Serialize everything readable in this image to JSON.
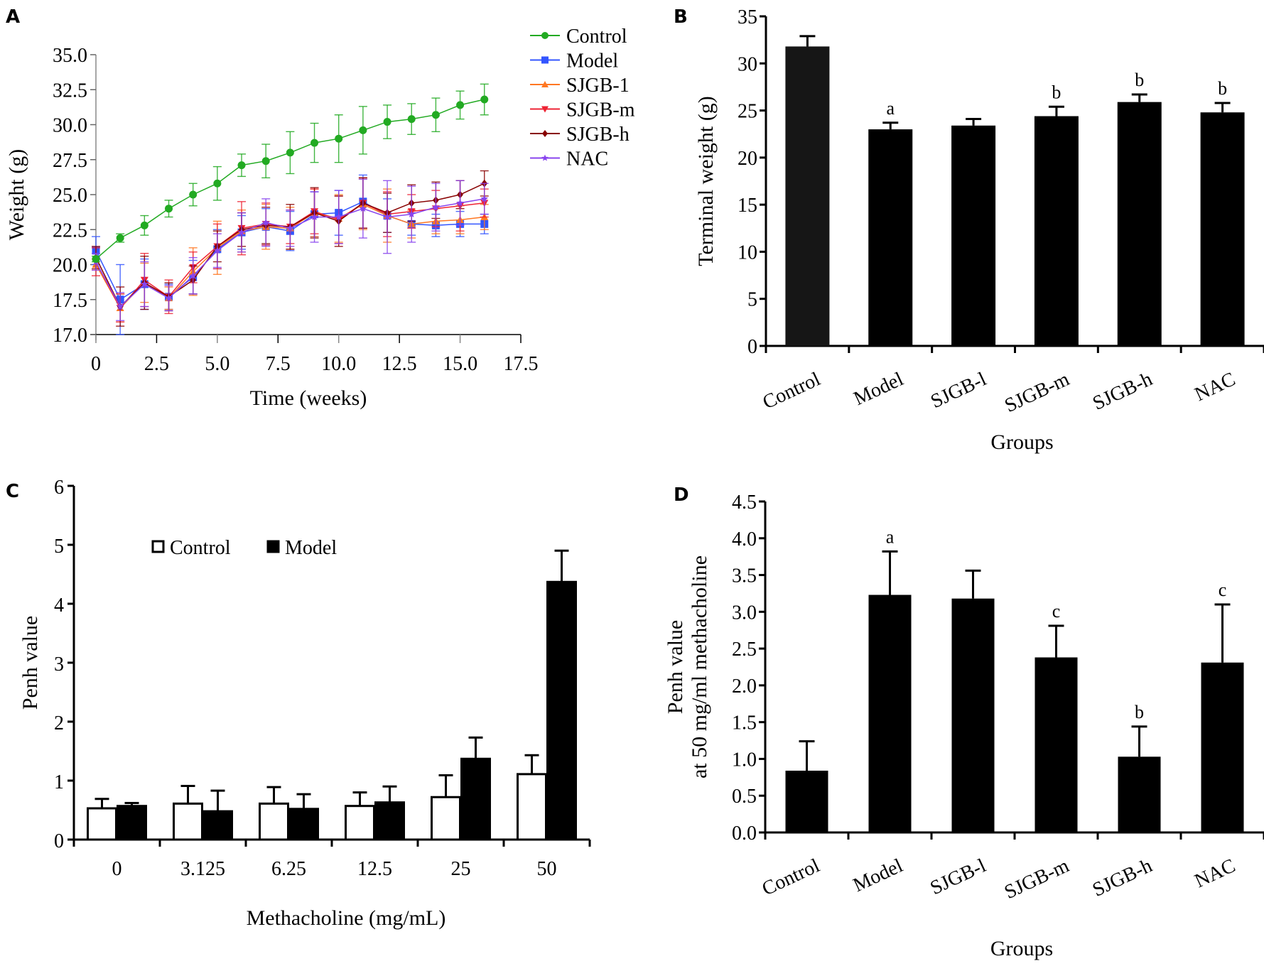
{
  "chart_data": [
    {
      "panel": "A",
      "type": "line",
      "title": "",
      "xlabel": "Time (weeks)",
      "ylabel": "Weight (g)",
      "xlim": [
        0,
        17.5
      ],
      "ylim": [
        15,
        35
      ],
      "x_ticks": [
        "0",
        "2.5",
        "5.0",
        "7.5",
        "10.0",
        "12.5",
        "15.0",
        "17.5"
      ],
      "y_ticks": [
        "35.0",
        "32.5",
        "30.0",
        "27.5",
        "25.0",
        "22.5",
        "20.0",
        "17.5",
        "17.0"
      ],
      "legend_position": "top-right outside",
      "grid": false,
      "x": [
        0,
        1,
        2,
        3,
        4,
        5,
        6,
        7,
        8,
        9,
        10,
        11,
        12,
        13,
        14,
        15,
        16
      ],
      "series": [
        {
          "name": "Control",
          "color": "#22aa22",
          "marker": "circle",
          "values": [
            20.4,
            21.9,
            22.8,
            24.0,
            25.0,
            25.8,
            27.1,
            27.4,
            28.0,
            28.7,
            29.0,
            29.6,
            30.2,
            30.4,
            30.7,
            31.4,
            31.8
          ],
          "errors": [
            0.2,
            0.3,
            0.7,
            0.6,
            0.8,
            1.2,
            0.8,
            1.2,
            1.5,
            1.4,
            1.7,
            1.7,
            1.2,
            1.1,
            1.2,
            1.0,
            1.1
          ]
        },
        {
          "name": "Model",
          "color": "#3355ff",
          "marker": "square",
          "values": [
            21.0,
            17.5,
            18.6,
            17.7,
            19.1,
            21.1,
            22.3,
            22.7,
            22.4,
            23.6,
            23.7,
            24.5,
            23.5,
            22.9,
            22.8,
            22.9,
            22.9
          ],
          "errors": [
            1.0,
            2.5,
            1.8,
            0.9,
            1.2,
            1.4,
            1.2,
            1.3,
            1.4,
            1.6,
            1.6,
            1.9,
            1.2,
            0.8,
            0.8,
            0.9,
            0.7
          ]
        },
        {
          "name": "SJGB-1",
          "color": "#ff7722",
          "marker": "triangle-up",
          "values": [
            20.0,
            16.9,
            18.7,
            17.6,
            19.5,
            21.2,
            22.4,
            22.7,
            22.6,
            23.7,
            23.3,
            24.3,
            23.5,
            22.9,
            23.1,
            23.2,
            23.4
          ],
          "errors": [
            0.4,
            1.0,
            1.4,
            0.8,
            1.7,
            1.9,
            1.5,
            1.6,
            1.5,
            1.7,
            1.7,
            1.8,
            1.9,
            1.0,
            0.9,
            1.0,
            0.9
          ]
        },
        {
          "name": "SJGB-m",
          "color": "#ee2233",
          "marker": "triangle-down",
          "values": [
            20.2,
            16.9,
            18.9,
            17.7,
            19.8,
            21.3,
            22.6,
            22.9,
            22.7,
            23.8,
            23.2,
            24.4,
            23.6,
            23.8,
            24.0,
            24.2,
            24.4
          ],
          "errors": [
            1.0,
            1.0,
            1.9,
            1.2,
            1.1,
            1.6,
            1.9,
            1.5,
            1.2,
            1.6,
            1.7,
            1.8,
            1.6,
            1.2,
            1.3,
            1.8,
            1.0
          ]
        },
        {
          "name": "SJGB-h",
          "color": "#880000",
          "marker": "diamond",
          "values": [
            20.5,
            17.0,
            18.7,
            17.7,
            18.9,
            21.3,
            22.5,
            22.8,
            22.7,
            23.7,
            23.1,
            24.4,
            23.7,
            24.4,
            24.6,
            25.0,
            25.8
          ],
          "errors": [
            0.8,
            1.4,
            1.9,
            1.0,
            1.0,
            1.1,
            1.2,
            1.3,
            1.6,
            1.8,
            1.8,
            1.8,
            1.4,
            1.3,
            1.3,
            1.0,
            0.9
          ]
        },
        {
          "name": "NAC",
          "color": "#8844ee",
          "marker": "star",
          "values": [
            20.2,
            17.0,
            18.6,
            17.6,
            19.2,
            21.0,
            22.3,
            23.0,
            22.6,
            23.4,
            23.4,
            24.0,
            23.4,
            23.6,
            24.1,
            24.4,
            24.7
          ],
          "errors": [
            0.6,
            1.0,
            1.6,
            0.9,
            1.3,
            1.2,
            1.4,
            1.7,
            1.3,
            1.8,
            1.9,
            2.1,
            2.6,
            2.0,
            1.7,
            1.6,
            1.1
          ]
        }
      ]
    },
    {
      "panel": "B",
      "type": "bar",
      "title": "",
      "xlabel": "Groups",
      "ylabel": "Terminal weight (g)",
      "ylim": [
        0,
        35
      ],
      "y_ticks": [
        "0",
        "5",
        "10",
        "15",
        "20",
        "25",
        "30",
        "35"
      ],
      "categories": [
        "Control",
        "Model",
        "SJGB-l",
        "SJGB-m",
        "SJGB-h",
        "NAC"
      ],
      "values": [
        31.8,
        23.0,
        23.4,
        24.4,
        25.9,
        24.8
      ],
      "errors": [
        1.1,
        0.7,
        0.7,
        1.0,
        0.8,
        1.0
      ],
      "annotations": [
        "",
        "a",
        "",
        "b",
        "b",
        "b"
      ],
      "grid": false
    },
    {
      "panel": "C",
      "type": "bar",
      "title": "",
      "xlabel": "Methacholine (mg/mL)",
      "ylabel": "Penh value",
      "ylim": [
        0,
        6
      ],
      "y_ticks": [
        "0",
        "1",
        "2",
        "3",
        "4",
        "5",
        "6"
      ],
      "categories": [
        "0",
        "3.125",
        "6.25",
        "12.5",
        "25",
        "50"
      ],
      "legend_position": "top-left",
      "grid": false,
      "series": [
        {
          "name": "Control",
          "fill": "#ffffff",
          "values": [
            0.53,
            0.61,
            0.61,
            0.57,
            0.72,
            1.11
          ],
          "errors": [
            0.16,
            0.3,
            0.28,
            0.23,
            0.37,
            0.32
          ]
        },
        {
          "name": "Model",
          "fill": "#000000",
          "values": [
            0.57,
            0.48,
            0.52,
            0.63,
            1.37,
            4.37
          ],
          "errors": [
            0.05,
            0.35,
            0.25,
            0.27,
            0.36,
            0.53
          ]
        }
      ]
    },
    {
      "panel": "D",
      "type": "bar",
      "title": "",
      "xlabel": "Groups",
      "ylabel": [
        "Penh value",
        "at 50 mg/ml methacholine"
      ],
      "ylim": [
        0,
        4.5
      ],
      "y_ticks": [
        "0.0",
        "0.5",
        "1.0",
        "1.5",
        "2.0",
        "2.5",
        "3.0",
        "3.5",
        "4.0",
        "4.5"
      ],
      "categories": [
        "Control",
        "Model",
        "SJGB-l",
        "SJGB-m",
        "SJGB-h",
        "NAC"
      ],
      "values": [
        0.84,
        3.23,
        3.18,
        2.38,
        1.03,
        2.31
      ],
      "errors": [
        0.4,
        0.59,
        0.38,
        0.43,
        0.41,
        0.79
      ],
      "annotations": [
        "",
        "a",
        "",
        "c",
        "b",
        "c"
      ],
      "grid": false
    }
  ],
  "panel_labels": [
    "A",
    "B",
    "C",
    "D"
  ]
}
